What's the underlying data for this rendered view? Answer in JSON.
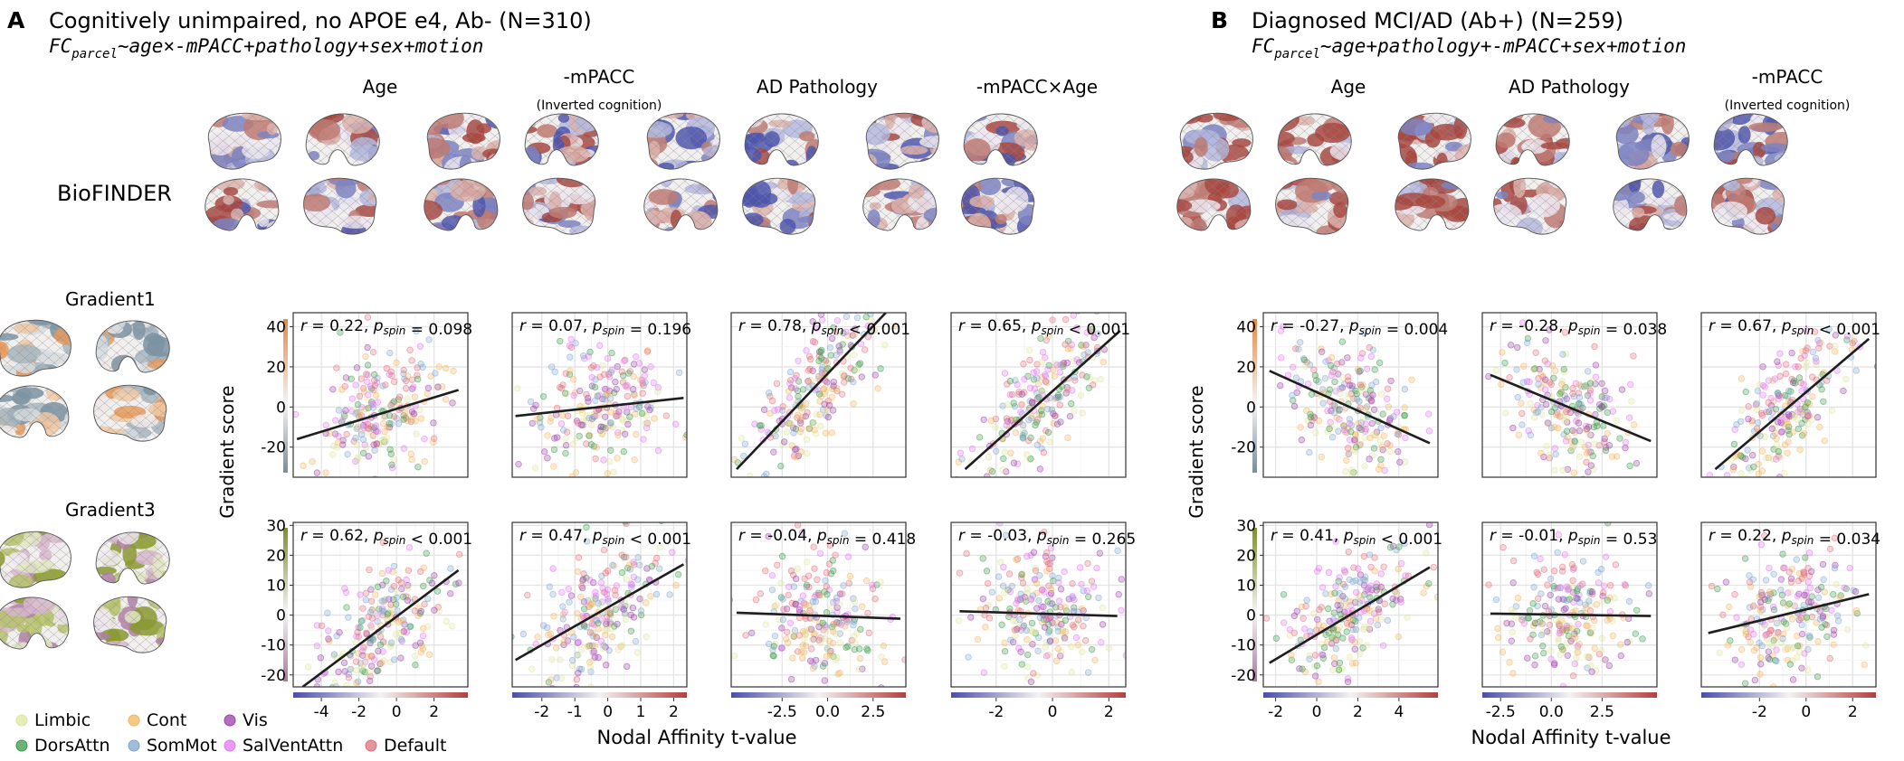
{
  "panels": [
    {
      "letter": "A",
      "title": "Cognitively unimpaired, no APOE e4, Ab- (N=310)",
      "formula_lhs": "FC",
      "formula_sub": "parcel",
      "formula_rhs": "~age×-mPACC+pathology+sex+motion",
      "row_label": "BioFINDER",
      "gradient_labels": [
        "Gradient1",
        "Gradient3"
      ],
      "ylabel": "Gradient score",
      "columns": [
        {
          "title": "Age",
          "subtitle": ""
        },
        {
          "title": "-mPACC",
          "subtitle": "(Inverted cognition)"
        },
        {
          "title": "AD Pathology",
          "subtitle": ""
        },
        {
          "title": "-mPACC×Age",
          "subtitle": ""
        }
      ]
    },
    {
      "letter": "B",
      "title": "Diagnosed MCI/AD (Ab+) (N=259)",
      "formula_lhs": "FC",
      "formula_sub": "parcel",
      "formula_rhs": "~age+pathology+-mPACC+sex+motion",
      "ylabel": "Gradient score",
      "columns": [
        {
          "title": "Age",
          "subtitle": ""
        },
        {
          "title": "AD Pathology",
          "subtitle": ""
        },
        {
          "title": "-mPACC",
          "subtitle": "(Inverted cognition)"
        }
      ]
    }
  ],
  "xlabel": "Nodal Affinity t-value",
  "legend": [
    {
      "name": "Limbic",
      "color": "#dfe6a0"
    },
    {
      "name": "Cont",
      "color": "#f3b560"
    },
    {
      "name": "Vis",
      "color": "#9b40a8"
    },
    {
      "name": "DorsAttn",
      "color": "#3a9a4a"
    },
    {
      "name": "SomMot",
      "color": "#7fa6cf"
    },
    {
      "name": "SalVentAttn",
      "color": "#e178f2"
    },
    {
      "name": "Default",
      "color": "#e0707c"
    }
  ],
  "chart_data": [
    {
      "type": "scatter",
      "panel": "A",
      "column": "Age",
      "row": "Gradient1",
      "r": "0.22",
      "p_op": "=",
      "p_spin": "0.098",
      "xlim": [
        -5.5,
        3.8
      ],
      "ylim": [
        -35,
        47
      ],
      "xticks": [
        -4,
        -2,
        0,
        2
      ],
      "xtick_labels": [
        "-4",
        "-2",
        "0",
        "2"
      ],
      "yticks": [
        -20,
        0,
        20,
        40
      ],
      "ytick_labels": [
        "-20",
        "0",
        "20",
        "40"
      ],
      "fit": {
        "x": [
          -5.3,
          3.3
        ],
        "y": [
          -16,
          8.5
        ]
      },
      "colorbar": {
        "min": -5.5,
        "max": 3.8
      }
    },
    {
      "type": "scatter",
      "panel": "A",
      "column": "-mPACC",
      "row": "Gradient1",
      "r": "0.07",
      "p_op": "=",
      "p_spin": "0.196",
      "xlim": [
        -2.9,
        2.4
      ],
      "ylim": [
        -35,
        47
      ],
      "xticks": [
        -2,
        -1,
        0,
        1,
        2
      ],
      "xtick_labels": [
        "-2",
        "-1",
        "0",
        "1",
        "2"
      ],
      "yticks": [
        -20,
        0,
        20,
        40
      ],
      "ytick_labels": [
        "-20",
        "0",
        "20",
        "40"
      ],
      "fit": {
        "x": [
          -2.8,
          2.3
        ],
        "y": [
          -4.5,
          4.5
        ]
      },
      "colorbar": {
        "min": -2.9,
        "max": 2.4
      }
    },
    {
      "type": "scatter",
      "panel": "A",
      "column": "AD Pathology",
      "row": "Gradient1",
      "r": "0.78",
      "p_op": "<",
      "p_spin": "0.001",
      "xlim": [
        -5.3,
        4.3
      ],
      "ylim": [
        -35,
        47
      ],
      "xticks": [
        -2.5,
        0,
        2.5
      ],
      "xtick_labels": [
        "-2.5",
        "0.0",
        "2.5"
      ],
      "yticks": [
        -20,
        0,
        20,
        40
      ],
      "ytick_labels": [
        "-20",
        "0",
        "20",
        "40"
      ],
      "fit": {
        "x": [
          -5.0,
          3.2
        ],
        "y": [
          -31,
          47
        ]
      },
      "colorbar": {
        "min": -5.3,
        "max": 4.3
      }
    },
    {
      "type": "scatter",
      "panel": "A",
      "column": "-mPACC×Age",
      "row": "Gradient1",
      "r": "0.65",
      "p_op": "<",
      "p_spin": "0.001",
      "xlim": [
        -3.6,
        2.6
      ],
      "ylim": [
        -35,
        47
      ],
      "xticks": [
        -2,
        0,
        2
      ],
      "xtick_labels": [
        "-2",
        "0",
        "2"
      ],
      "yticks": [
        -20,
        0,
        20,
        40
      ],
      "ytick_labels": [
        "-20",
        "0",
        "20",
        "40"
      ],
      "fit": {
        "x": [
          -3.1,
          2.4
        ],
        "y": [
          -31,
          38
        ]
      },
      "colorbar": {
        "min": -3.6,
        "max": 2.6
      }
    },
    {
      "type": "scatter",
      "panel": "A",
      "column": "Age",
      "row": "Gradient3",
      "r": "0.62",
      "p_op": "<",
      "p_spin": "0.001",
      "xlim": [
        -5.5,
        3.8
      ],
      "ylim": [
        -24,
        31
      ],
      "xticks": [
        -4,
        -2,
        0,
        2
      ],
      "xtick_labels": [
        "-4",
        "-2",
        "0",
        "2"
      ],
      "yticks": [
        -20,
        -10,
        0,
        10,
        20,
        30
      ],
      "ytick_labels": [
        "-20",
        "-10",
        "0",
        "10",
        "20",
        "30"
      ],
      "fit": {
        "x": [
          -5.0,
          3.3
        ],
        "y": [
          -24,
          15
        ]
      },
      "colorbar": {
        "min": -5.5,
        "max": 3.8
      }
    },
    {
      "type": "scatter",
      "panel": "A",
      "column": "-mPACC",
      "row": "Gradient3",
      "r": "0.47",
      "p_op": "<",
      "p_spin": "0.001",
      "xlim": [
        -2.9,
        2.4
      ],
      "ylim": [
        -24,
        31
      ],
      "xticks": [
        -2,
        -1,
        0,
        1,
        2
      ],
      "xtick_labels": [
        "-2",
        "-1",
        "0",
        "1",
        "2"
      ],
      "yticks": [
        -20,
        -10,
        0,
        10,
        20,
        30
      ],
      "ytick_labels": [
        "-20",
        "-10",
        "0",
        "10",
        "20",
        "30"
      ],
      "fit": {
        "x": [
          -2.8,
          2.3
        ],
        "y": [
          -15,
          17
        ]
      },
      "colorbar": {
        "min": -2.9,
        "max": 2.4
      }
    },
    {
      "type": "scatter",
      "panel": "A",
      "column": "AD Pathology",
      "row": "Gradient3",
      "r": "-0.04",
      "p_op": "=",
      "p_spin": "0.418",
      "xlim": [
        -5.3,
        4.3
      ],
      "ylim": [
        -24,
        31
      ],
      "xticks": [
        -2.5,
        0,
        2.5
      ],
      "xtick_labels": [
        "-2.5",
        "0.0",
        "2.5"
      ],
      "yticks": [
        -20,
        -10,
        0,
        10,
        20,
        30
      ],
      "ytick_labels": [
        "-20",
        "-10",
        "0",
        "10",
        "20",
        "30"
      ],
      "fit": {
        "x": [
          -5.0,
          4.0
        ],
        "y": [
          0.8,
          -1.2
        ]
      },
      "colorbar": {
        "min": -5.3,
        "max": 4.3
      }
    },
    {
      "type": "scatter",
      "panel": "A",
      "column": "-mPACC×Age",
      "row": "Gradient3",
      "r": "-0.03",
      "p_op": "=",
      "p_spin": "0.265",
      "xlim": [
        -3.6,
        2.6
      ],
      "ylim": [
        -24,
        31
      ],
      "xticks": [
        -2,
        0,
        2
      ],
      "xtick_labels": [
        "-2",
        "0",
        "2"
      ],
      "yticks": [
        -20,
        -10,
        0,
        10,
        20,
        30
      ],
      "ytick_labels": [
        "-20",
        "-10",
        "0",
        "10",
        "20",
        "30"
      ],
      "fit": {
        "x": [
          -3.3,
          2.3
        ],
        "y": [
          1.3,
          -0.3
        ]
      },
      "colorbar": {
        "min": -3.6,
        "max": 2.6
      }
    },
    {
      "type": "scatter",
      "panel": "B",
      "column": "Age",
      "row": "Gradient1",
      "r": "-0.27",
      "p_op": "=",
      "p_spin": "0.004",
      "xlim": [
        -2.6,
        5.9
      ],
      "ylim": [
        -35,
        47
      ],
      "xticks": [
        -2,
        0,
        2,
        4
      ],
      "xtick_labels": [
        "-2",
        "0",
        "2",
        "4"
      ],
      "yticks": [
        -20,
        0,
        20,
        40
      ],
      "ytick_labels": [
        "-20",
        "0",
        "20",
        "40"
      ],
      "fit": {
        "x": [
          -2.3,
          5.5
        ],
        "y": [
          18,
          -18
        ]
      },
      "colorbar": {
        "min": -2.6,
        "max": 5.9
      }
    },
    {
      "type": "scatter",
      "panel": "B",
      "column": "AD Pathology",
      "row": "Gradient1",
      "r": "-0.28",
      "p_op": "=",
      "p_spin": "0.038",
      "xlim": [
        -3.4,
        5.2
      ],
      "ylim": [
        -35,
        47
      ],
      "xticks": [
        -2.5,
        0,
        2.5
      ],
      "xtick_labels": [
        "-2.5",
        "0.0",
        "2.5"
      ],
      "yticks": [
        -20,
        0,
        20,
        40
      ],
      "ytick_labels": [
        "-20",
        "0",
        "20",
        "40"
      ],
      "fit": {
        "x": [
          -3.0,
          4.9
        ],
        "y": [
          16,
          -17
        ]
      },
      "colorbar": {
        "min": -3.4,
        "max": 5.2
      }
    },
    {
      "type": "scatter",
      "panel": "B",
      "column": "-mPACC",
      "row": "Gradient1",
      "r": "0.67",
      "p_op": "<",
      "p_spin": "0.001",
      "xlim": [
        -4.5,
        3.0
      ],
      "ylim": [
        -35,
        47
      ],
      "xticks": [
        -2,
        0,
        2
      ],
      "xtick_labels": [
        "-2",
        "0",
        "2"
      ],
      "yticks": [
        -20,
        0,
        20,
        40
      ],
      "ytick_labels": [
        "-20",
        "0",
        "20",
        "40"
      ],
      "fit": {
        "x": [
          -3.9,
          2.7
        ],
        "y": [
          -31,
          34
        ]
      },
      "colorbar": {
        "min": -4.5,
        "max": 3.0
      }
    },
    {
      "type": "scatter",
      "panel": "B",
      "column": "Age",
      "row": "Gradient3",
      "r": "0.41",
      "p_op": "<",
      "p_spin": "0.001",
      "xlim": [
        -2.6,
        5.9
      ],
      "ylim": [
        -24,
        31
      ],
      "xticks": [
        -2,
        0,
        2,
        4
      ],
      "xtick_labels": [
        "-2",
        "0",
        "2",
        "4"
      ],
      "yticks": [
        -20,
        -10,
        0,
        10,
        20,
        30
      ],
      "ytick_labels": [
        "-20",
        "-10",
        "0",
        "10",
        "20",
        "30"
      ],
      "fit": {
        "x": [
          -2.3,
          5.5
        ],
        "y": [
          -16,
          16
        ]
      },
      "colorbar": {
        "min": -2.6,
        "max": 5.9
      }
    },
    {
      "type": "scatter",
      "panel": "B",
      "column": "AD Pathology",
      "row": "Gradient3",
      "r": "-0.01",
      "p_op": "=",
      "p_spin": "0.53",
      "xlim": [
        -3.4,
        5.2
      ],
      "ylim": [
        -24,
        31
      ],
      "xticks": [
        -2.5,
        0,
        2.5
      ],
      "xtick_labels": [
        "-2.5",
        "0.0",
        "2.5"
      ],
      "yticks": [
        -20,
        -10,
        0,
        10,
        20,
        30
      ],
      "ytick_labels": [
        "-20",
        "-10",
        "0",
        "10",
        "20",
        "30"
      ],
      "fit": {
        "x": [
          -3.0,
          4.9
        ],
        "y": [
          0.5,
          -0.3
        ]
      },
      "colorbar": {
        "min": -3.4,
        "max": 5.2
      }
    },
    {
      "type": "scatter",
      "panel": "B",
      "column": "-mPACC",
      "row": "Gradient3",
      "r": "0.22",
      "p_op": "=",
      "p_spin": "0.034",
      "xlim": [
        -4.5,
        3.0
      ],
      "ylim": [
        -24,
        31
      ],
      "xticks": [
        -2,
        0,
        2
      ],
      "xtick_labels": [
        "-2",
        "0",
        "2"
      ],
      "yticks": [
        -20,
        -10,
        0,
        10,
        20,
        30
      ],
      "ytick_labels": [
        "-20",
        "-10",
        "0",
        "10",
        "20",
        "30"
      ],
      "fit": {
        "x": [
          -4.2,
          2.7
        ],
        "y": [
          -6,
          7
        ]
      },
      "colorbar": {
        "min": -4.5,
        "max": 3.0
      }
    }
  ]
}
